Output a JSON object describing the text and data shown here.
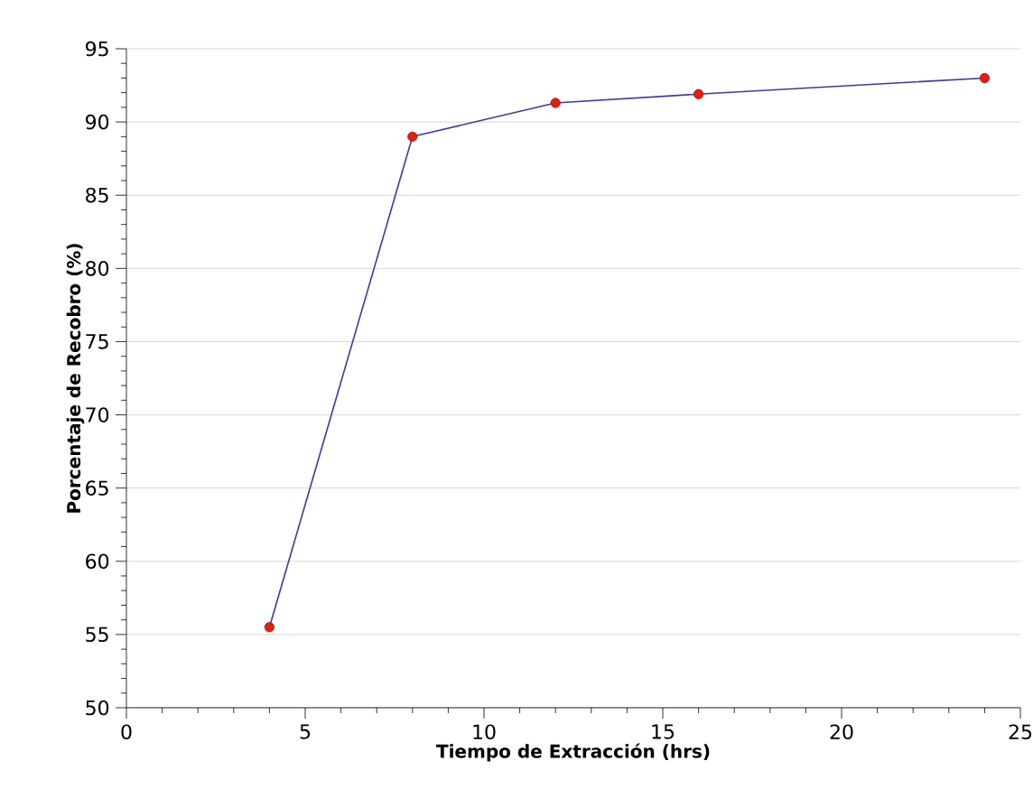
{
  "chart_data": {
    "type": "line",
    "xlabel": "Tiempo de Extracción (hrs)",
    "ylabel": "Porcentaje de Recobro (%)",
    "x": [
      4,
      8,
      12,
      16,
      24
    ],
    "series": [
      {
        "color": "#3a3aa8",
        "colors": [
          "#e02010",
          "#e02010",
          "#e02010",
          "#e02010",
          "#e02010"
        ],
        "values": [
          55.5,
          89,
          91.3,
          91.9,
          93
        ]
      }
    ],
    "marker": "circle",
    "line_style": "solid",
    "xlim": [
      0,
      25
    ],
    "xticks": [
      0,
      5,
      10,
      15,
      20,
      25
    ],
    "ylim": [
      50,
      95
    ],
    "yticks": [
      50,
      55,
      60,
      65,
      70,
      75,
      80,
      85,
      90,
      95
    ],
    "grid": "y",
    "legend": false
  }
}
